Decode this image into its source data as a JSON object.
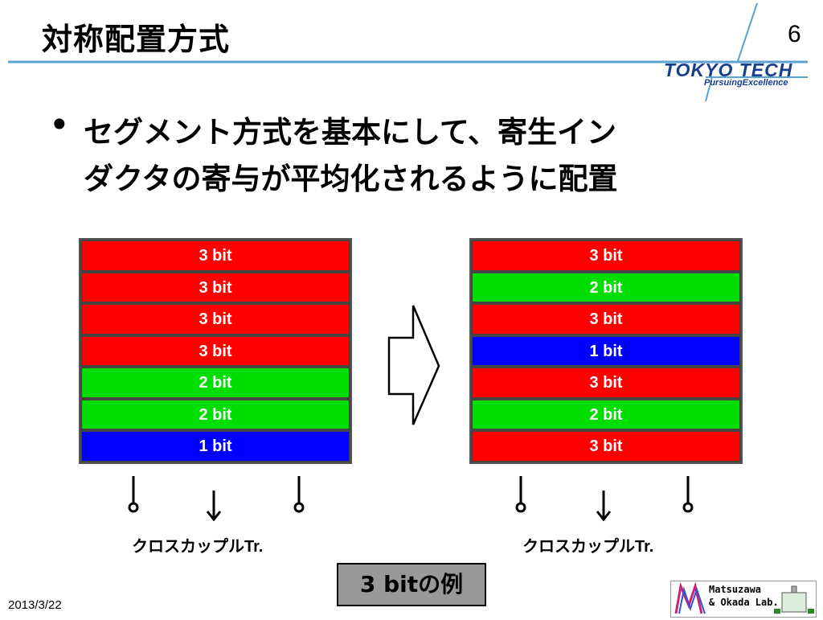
{
  "header": {
    "title": "対称配置方式",
    "page_number": "6",
    "logo_text": "TOKYO TECH",
    "logo_tagline": "PursuingExcellence"
  },
  "body": {
    "bullet_symbol": "•",
    "lines": [
      "セグメント方式を基本にして、寄生イン",
      "ダクタの寄与が平均化されるように配置"
    ]
  },
  "left_stack": {
    "segments": [
      {
        "label": "3 bit",
        "bits": 3
      },
      {
        "label": "3 bit",
        "bits": 3
      },
      {
        "label": "3 bit",
        "bits": 3
      },
      {
        "label": "3 bit",
        "bits": 3
      },
      {
        "label": "2 bit",
        "bits": 2
      },
      {
        "label": "2 bit",
        "bits": 2
      },
      {
        "label": "1 bit",
        "bits": 1
      }
    ],
    "caption": "クロスカップルTr."
  },
  "right_stack": {
    "segments": [
      {
        "label": "3 bit",
        "bits": 3
      },
      {
        "label": "2 bit",
        "bits": 2
      },
      {
        "label": "3 bit",
        "bits": 3
      },
      {
        "label": "1 bit",
        "bits": 1
      },
      {
        "label": "3 bit",
        "bits": 3
      },
      {
        "label": "2 bit",
        "bits": 2
      },
      {
        "label": "3 bit",
        "bits": 3
      }
    ],
    "caption": "クロスカップルTr."
  },
  "colors": {
    "bit3": "#ff0000",
    "bit2": "#00dd00",
    "bit1": "#0000ff",
    "logo_blue": "#1a3e8e",
    "rule_blue": "#5ba3d0"
  },
  "example_label": "3 bitの例",
  "footer": {
    "date": "2013/3/22",
    "lab_name_line1": "Matsuzawa",
    "lab_name_line2": "& Okada Lab."
  }
}
